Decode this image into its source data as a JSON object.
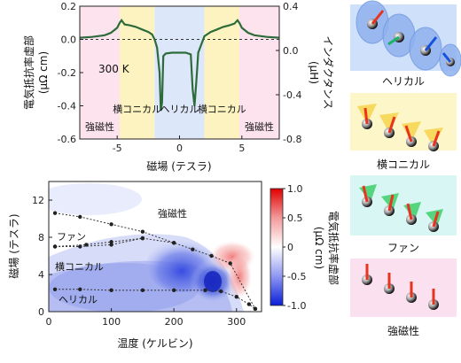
{
  "chart_data": [
    {
      "type": "line",
      "xlabel": "磁場 (テスラ)",
      "ylabel_left": "電気抵抗率虚部",
      "ylabel_left_unit": "(μΩ cm)",
      "ylabel_right": "インダクタンス",
      "ylabel_right_unit": "(μH)",
      "xlim": [
        -8,
        8
      ],
      "ylim": [
        -0.6,
        0.2
      ],
      "ylim_right": [
        -0.8,
        0.4
      ],
      "xticks": [
        "-5",
        "0",
        "5"
      ],
      "yticks_left": [
        "-0.6",
        "-0.4",
        "-0.2",
        "0.0",
        "0.2"
      ],
      "yticks_right": [
        "-0.8",
        "-0.4",
        "0.0",
        "0.4"
      ],
      "temperature_label": "300 K",
      "regions": [
        {
          "label": "強磁性",
          "x_from": -8,
          "x_to": -4.8,
          "color": "#fde3ee"
        },
        {
          "label": "横コニカル",
          "x_from": -4.8,
          "x_to": -2.0,
          "color": "#fcf3c0"
        },
        {
          "label": "ヘリカル",
          "x_from": -2.0,
          "x_to": 2.0,
          "color": "#dde7fa"
        },
        {
          "label": "横コニカル",
          "x_from": 2.0,
          "x_to": 4.8,
          "color": "#fcf3c0"
        },
        {
          "label": "強磁性",
          "x_from": 4.8,
          "x_to": 8,
          "color": "#fde3ee"
        }
      ],
      "series": [
        {
          "color": "#2e6b3a",
          "points": [
            [
              -8,
              0.01
            ],
            [
              -7,
              0.015
            ],
            [
              -6,
              0.025
            ],
            [
              -5.5,
              0.04
            ],
            [
              -5.0,
              0.07
            ],
            [
              -4.8,
              0.1
            ],
            [
              -4.65,
              0.115
            ],
            [
              -4.4,
              0.09
            ],
            [
              -4.0,
              0.085
            ],
            [
              -3.5,
              0.075
            ],
            [
              -3.0,
              0.06
            ],
            [
              -2.5,
              0.045
            ],
            [
              -2.2,
              0.03
            ],
            [
              -2.0,
              0.0
            ],
            [
              -1.8,
              -0.05
            ],
            [
              -1.6,
              -0.2
            ],
            [
              -1.5,
              -0.43
            ],
            [
              -1.4,
              -0.38
            ],
            [
              -1.3,
              -0.1
            ],
            [
              -1.1,
              -0.085
            ],
            [
              -0.6,
              -0.08
            ],
            [
              0.0,
              -0.08
            ],
            [
              0.5,
              -0.08
            ],
            [
              0.9,
              -0.09
            ],
            [
              1.05,
              -0.3
            ],
            [
              1.2,
              -0.4
            ],
            [
              1.35,
              -0.25
            ],
            [
              1.5,
              -0.08
            ],
            [
              1.8,
              -0.02
            ],
            [
              2.0,
              0.02
            ],
            [
              2.5,
              0.045
            ],
            [
              3.0,
              0.06
            ],
            [
              3.5,
              0.075
            ],
            [
              4.0,
              0.085
            ],
            [
              4.4,
              0.095
            ],
            [
              4.65,
              0.115
            ],
            [
              4.8,
              0.1
            ],
            [
              5.0,
              0.07
            ],
            [
              5.5,
              0.04
            ],
            [
              6,
              0.025
            ],
            [
              7,
              0.015
            ],
            [
              8,
              0.01
            ]
          ]
        }
      ]
    },
    {
      "type": "heatmap",
      "xlabel": "温度 (ケルビン)",
      "ylabel": "磁場 (テスラ)",
      "xlim": [
        0,
        340
      ],
      "ylim": [
        0,
        14
      ],
      "xticks": [
        "0",
        "100",
        "200",
        "300"
      ],
      "yticks": [
        "0",
        "4",
        "8",
        "12"
      ],
      "colorbar": {
        "label": "電気抵抗率虚部",
        "unit": "(μΩ cm)",
        "min": -1.0,
        "max": 1.0,
        "ticks": [
          "1.0",
          "0.5",
          "0",
          "-0.5",
          "-1.0"
        ]
      },
      "phase_labels": [
        "強磁性",
        "ファン",
        "横コニカル",
        "ヘリカル"
      ],
      "boundaries": [
        {
          "name": "upper",
          "points": [
            [
              10,
              10.6
            ],
            [
              50,
              10.2
            ],
            [
              100,
              9.4
            ],
            [
              150,
              8.6
            ],
            [
              200,
              7.4
            ],
            [
              230,
              6.7
            ],
            [
              260,
              6.0
            ],
            [
              290,
              5.2
            ],
            [
              330,
              0.3
            ]
          ]
        },
        {
          "name": "fan-lower",
          "points": [
            [
              10,
              7.0
            ],
            [
              50,
              7.0
            ],
            [
              100,
              7.2
            ],
            [
              150,
              7.9
            ]
          ]
        },
        {
          "name": "fan-upper",
          "points": [
            [
              10,
              7.0
            ],
            [
              60,
              7.2
            ],
            [
              100,
              7.5
            ],
            [
              150,
              7.9
            ]
          ]
        },
        {
          "name": "middle",
          "points": [
            [
              150,
              7.9
            ],
            [
              200,
              7.4
            ]
          ]
        },
        {
          "name": "lower",
          "points": [
            [
              10,
              2.4
            ],
            [
              50,
              2.4
            ],
            [
              100,
              2.3
            ],
            [
              150,
              2.3
            ],
            [
              200,
              2.3
            ],
            [
              250,
              2.3
            ],
            [
              275,
              2.2
            ],
            [
              300,
              1.6
            ],
            [
              320,
              0.8
            ],
            [
              330,
              0.3
            ]
          ]
        }
      ]
    }
  ],
  "legend_panels": [
    {
      "label": "ヘリカル",
      "bg": "#cfe0fb"
    },
    {
      "label": "横コニカル",
      "bg": "#fdf6c9"
    },
    {
      "label": "ファン",
      "bg": "#d8f6f3"
    },
    {
      "label": "強磁性",
      "bg": "#fbe0f0"
    }
  ]
}
